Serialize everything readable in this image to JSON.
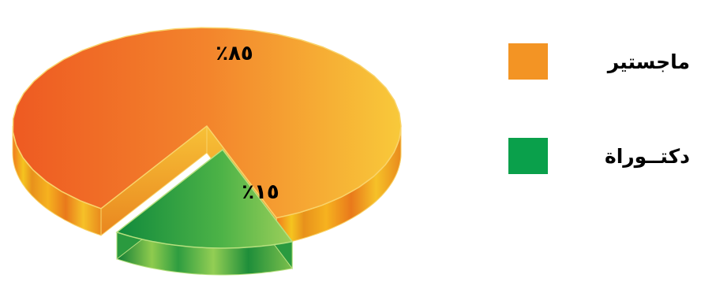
{
  "chart_data": {
    "type": "pie",
    "title": "",
    "slices": [
      {
        "label": "ماجستير",
        "value": 85,
        "display": "٪٨٥",
        "color": "#F39424"
      },
      {
        "label": "دكتــوراة",
        "value": 15,
        "display": "٪١٥",
        "color": "#0AA04B"
      }
    ],
    "legend_position": "right"
  }
}
